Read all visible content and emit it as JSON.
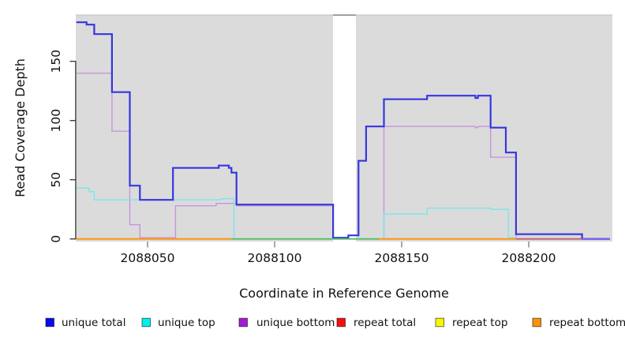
{
  "chart_data": {
    "type": "line",
    "subtype": "step-coverage-plot",
    "title": "",
    "xlabel": "Coordinate in Reference Genome",
    "ylabel": "Read Coverage Depth",
    "x_ticks": [
      2088050,
      2088100,
      2088150,
      2088200
    ],
    "y_ticks": [
      0,
      50,
      100,
      150
    ],
    "xlim": [
      2088022,
      2088232
    ],
    "ylim": [
      0,
      188
    ],
    "plot_background_color": "#DBDBDB",
    "gap_region": {
      "from": 2088123,
      "to": 2088132
    },
    "series": [
      {
        "name": "unique bottom",
        "color": "#C795DB",
        "width": 1.4,
        "points": [
          [
            2088022,
            140
          ],
          [
            2088036,
            91
          ],
          [
            2088043,
            12
          ],
          [
            2088047,
            1
          ],
          [
            2088061,
            28
          ],
          [
            2088077,
            30
          ],
          [
            2088085,
            28
          ],
          [
            2088123,
            0
          ],
          [
            2088143,
            95
          ],
          [
            2088179,
            94
          ],
          [
            2088180,
            95
          ],
          [
            2088185,
            69
          ],
          [
            2088195,
            0
          ]
        ]
      },
      {
        "name": "unique top",
        "color": "#7AE6EC",
        "width": 1.4,
        "points": [
          [
            2088022,
            43
          ],
          [
            2088027,
            40
          ],
          [
            2088029,
            33
          ],
          [
            2088079,
            34
          ],
          [
            2088084,
            0
          ],
          [
            2088143,
            21
          ],
          [
            2088160,
            26
          ],
          [
            2088185,
            25
          ],
          [
            2088192,
            1
          ],
          [
            2088195,
            0
          ]
        ]
      },
      {
        "name": "unique total",
        "color": "#3636DF",
        "width": 2.2,
        "points": [
          [
            2088022,
            183
          ],
          [
            2088026,
            181
          ],
          [
            2088029,
            173
          ],
          [
            2088036,
            124
          ],
          [
            2088043,
            45
          ],
          [
            2088047,
            33
          ],
          [
            2088060,
            60
          ],
          [
            2088078,
            62
          ],
          [
            2088082,
            60
          ],
          [
            2088083,
            56
          ],
          [
            2088085,
            29
          ],
          [
            2088123,
            1
          ],
          [
            2088129,
            3
          ],
          [
            2088133,
            66
          ],
          [
            2088136,
            95
          ],
          [
            2088143,
            118
          ],
          [
            2088160,
            121
          ],
          [
            2088179,
            119
          ],
          [
            2088180,
            121
          ],
          [
            2088185,
            94
          ],
          [
            2088191,
            73
          ],
          [
            2088195,
            4
          ],
          [
            2088221,
            0
          ]
        ]
      }
    ],
    "baseline_segments": [
      {
        "from": 2088022,
        "to": 2088083,
        "color": "#FF9100"
      },
      {
        "from": 2088083,
        "to": 2088141,
        "color": "#52BE62"
      },
      {
        "from": 2088141,
        "to": 2088195,
        "color": "#FF9100"
      },
      {
        "from": 2088195,
        "to": 2088221,
        "color": "#C06070"
      },
      {
        "from": 2088221,
        "to": 2088232,
        "color": "#7A5BEF"
      }
    ],
    "legend": [
      {
        "label": "unique total",
        "color": "#0A0AEE"
      },
      {
        "label": "unique top",
        "color": "#00EFEF"
      },
      {
        "label": "unique bottom",
        "color": "#A21CD5"
      },
      {
        "label": "repeat total",
        "color": "#F50F0F"
      },
      {
        "label": "repeat top",
        "color": "#F7F700"
      },
      {
        "label": "repeat bottom",
        "color": "#FB9207"
      }
    ]
  }
}
